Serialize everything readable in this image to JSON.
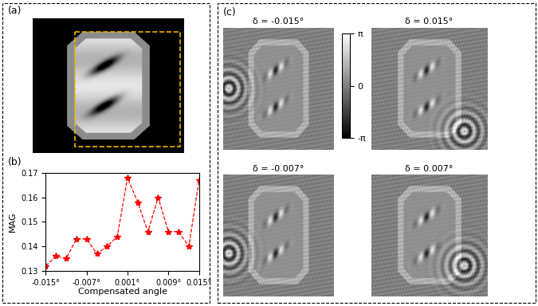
{
  "chart_data": {
    "type": "line",
    "xlabel": "Compensated angle",
    "ylabel": "MAG",
    "x": [
      -0.015,
      -0.013,
      -0.011,
      -0.009,
      -0.007,
      -0.005,
      -0.003,
      -0.001,
      0.001,
      0.003,
      0.005,
      0.007,
      0.009,
      0.011,
      0.013,
      0.015
    ],
    "values": [
      0.132,
      0.136,
      0.135,
      0.143,
      0.143,
      0.137,
      0.14,
      0.144,
      0.168,
      0.158,
      0.146,
      0.16,
      0.146,
      0.146,
      0.14,
      0.167
    ],
    "color": "#ff0000",
    "marker": "star",
    "line_style": "dashed",
    "xlim": [
      -0.015,
      0.015
    ],
    "ylim": [
      0.13,
      0.17
    ],
    "xticks": [
      {
        "value": -0.015,
        "label": "-0.015°"
      },
      {
        "value": -0.007,
        "label": "-0.007°"
      },
      {
        "value": 0.001,
        "label": "0.001°"
      },
      {
        "value": 0.009,
        "label": "0.009°"
      },
      {
        "value": 0.015,
        "label": "0.015°"
      }
    ],
    "yticks": [
      0.13,
      0.14,
      0.15,
      0.16,
      0.17
    ]
  },
  "panel_labels": [
    "(a)",
    "(b)",
    "(c)"
  ],
  "phase_maps": {
    "titles": [
      "δ = -0.015°",
      "δ = 0.015°",
      "δ = -0.007°",
      "δ = 0.007°"
    ],
    "colorbar": {
      "range": [
        -3.141592653589793,
        3.141592653589793
      ],
      "ticks": [
        {
          "value": 3.141592653589793,
          "label": "π"
        },
        {
          "value": 0,
          "label": "0"
        },
        {
          "value": -3.141592653589793,
          "label": "-π"
        }
      ]
    }
  }
}
